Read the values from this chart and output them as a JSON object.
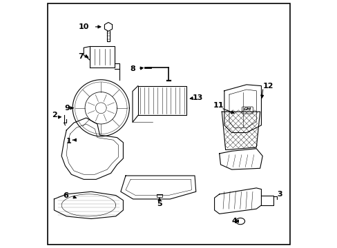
{
  "bg_color": "#ffffff",
  "fig_width": 4.89,
  "fig_height": 3.6,
  "dpi": 100,
  "line_color": "#000000",
  "text_color": "#000000",
  "lw_main": 0.8
}
